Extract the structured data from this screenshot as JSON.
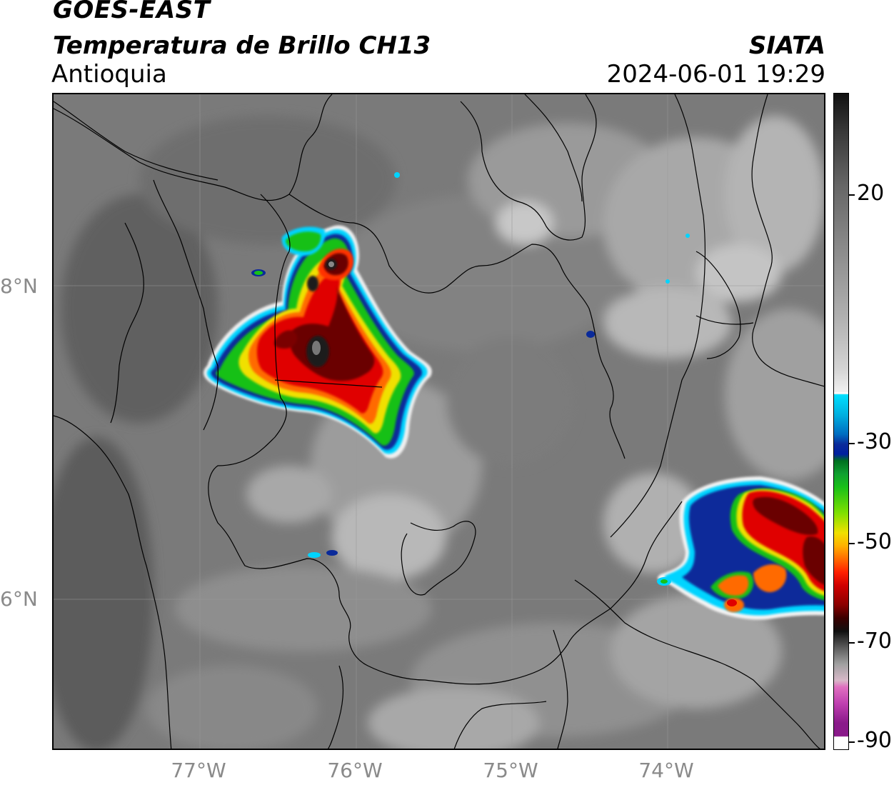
{
  "header": {
    "satellite": "GOES-EAST",
    "product": "Temperatura de Brillo CH13",
    "region": "Antioquia",
    "organization": "SIATA",
    "timestamp": "2024-06-01 19:29"
  },
  "axes": {
    "lat_labels": [
      "8°N",
      "6°N"
    ],
    "lon_labels": [
      "77°W",
      "76°W",
      "75°W",
      "74°W"
    ]
  },
  "colorbar": {
    "labels": [
      "20",
      "-30",
      "-50",
      "-70",
      "-90"
    ],
    "colors": {
      "warm_top": "#111111",
      "grey_mid": "#9a9a9a",
      "white": "#f4f4f4",
      "cyan": "#00d4ff",
      "blue": "#00208a",
      "green": "#18c018",
      "yellow": "#f0e000",
      "orange": "#ff8000",
      "red": "#e00000",
      "darkred": "#5a0000",
      "black": "#101010",
      "lightpink": "#d8b0c8",
      "magenta": "#d040c0",
      "purple": "#8a1a8a"
    }
  }
}
